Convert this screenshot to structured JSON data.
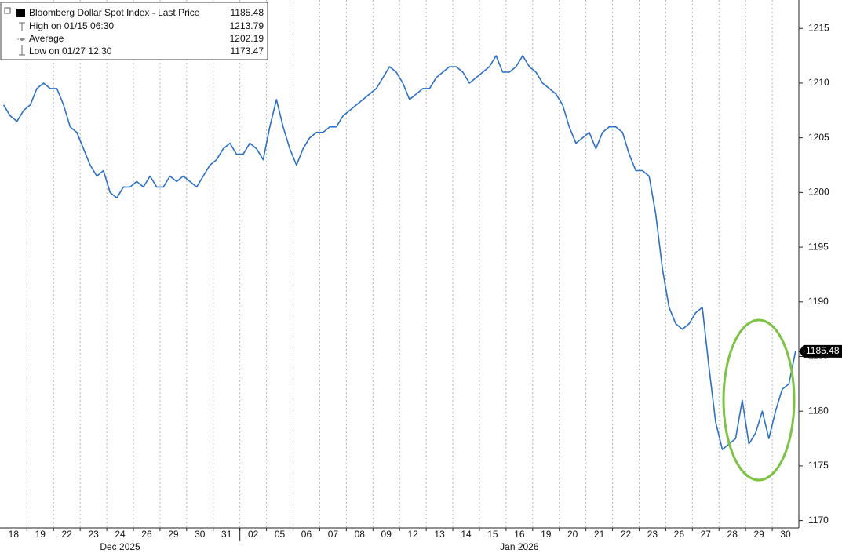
{
  "chart_data": {
    "type": "line",
    "categories": [
      "18",
      "19",
      "22",
      "23",
      "24",
      "26",
      "29",
      "30",
      "31",
      "02",
      "05",
      "06",
      "07",
      "08",
      "09",
      "12",
      "13",
      "14",
      "15",
      "16",
      "19",
      "20",
      "21",
      "22",
      "23",
      "26",
      "27",
      "28",
      "29",
      "30"
    ],
    "x_groups": [
      {
        "label": "Dec 2025",
        "categories": 9
      },
      {
        "label": "Jan 2026",
        "categories": 21
      }
    ],
    "series": [
      {
        "name": "Bloomberg Dollar Spot Index - Last Price",
        "color": "#2c6fc6",
        "last_price": 1185.48,
        "values": [
          [
            1208,
            1207,
            1206.5,
            1207.5
          ],
          [
            1208,
            1209.5,
            1210,
            1209.5
          ],
          [
            1209.5,
            1208,
            1206,
            1205.5
          ],
          [
            1204,
            1202.5,
            1201.5,
            1202
          ],
          [
            1200,
            1199.5,
            1200.5,
            1200.5
          ],
          [
            1201,
            1200.5,
            1201.5,
            1200.5
          ],
          [
            1200.5,
            1201.5,
            1201,
            1201.5
          ],
          [
            1201,
            1200.5,
            1201.5,
            1202.5
          ],
          [
            1203,
            1204,
            1204.5,
            1203.5
          ],
          [
            1203.5,
            1204.5,
            1204,
            1203
          ],
          [
            1206,
            1208.5,
            1206,
            1204
          ],
          [
            1202.5,
            1204,
            1205,
            1205.5
          ],
          [
            1205.5,
            1206,
            1206,
            1207
          ],
          [
            1207.5,
            1208,
            1208.5,
            1209
          ],
          [
            1209.5,
            1210.5,
            1211.5,
            1211
          ],
          [
            1210,
            1208.5,
            1209,
            1209.5
          ],
          [
            1209.5,
            1210.5,
            1211,
            1211.5
          ],
          [
            1211.5,
            1211,
            1210,
            1210.5
          ],
          [
            1211,
            1211.5,
            1212.5,
            1211
          ],
          [
            1211,
            1211.5,
            1212.5,
            1211.5
          ],
          [
            1211,
            1210,
            1209.5,
            1209
          ],
          [
            1208,
            1206,
            1204.5,
            1205
          ],
          [
            1205.5,
            1204,
            1205.5,
            1206
          ],
          [
            1206,
            1205.5,
            1203.5,
            1202
          ],
          [
            1202,
            1201.5,
            1198,
            1193
          ],
          [
            1189.5,
            1188,
            1187.5,
            1188
          ],
          [
            1189,
            1189.5,
            1184,
            1179
          ],
          [
            1176.5,
            1177,
            1177.5,
            1181
          ],
          [
            1177,
            1178,
            1180,
            1177.5
          ],
          [
            1180,
            1182,
            1182.5,
            1185.48
          ]
        ]
      }
    ],
    "legend_stats": [
      {
        "label": "High on 01/15 06:30",
        "value": 1213.79
      },
      {
        "label": "Average",
        "value": 1202.19
      },
      {
        "label": "Low on 01/27 12:30",
        "value": 1173.47
      }
    ],
    "ylim": [
      1169.4,
      1217.6
    ],
    "yticks": [
      1170,
      1175,
      1180,
      1185,
      1190,
      1195,
      1200,
      1205,
      1210,
      1215
    ],
    "grid": true
  }
}
